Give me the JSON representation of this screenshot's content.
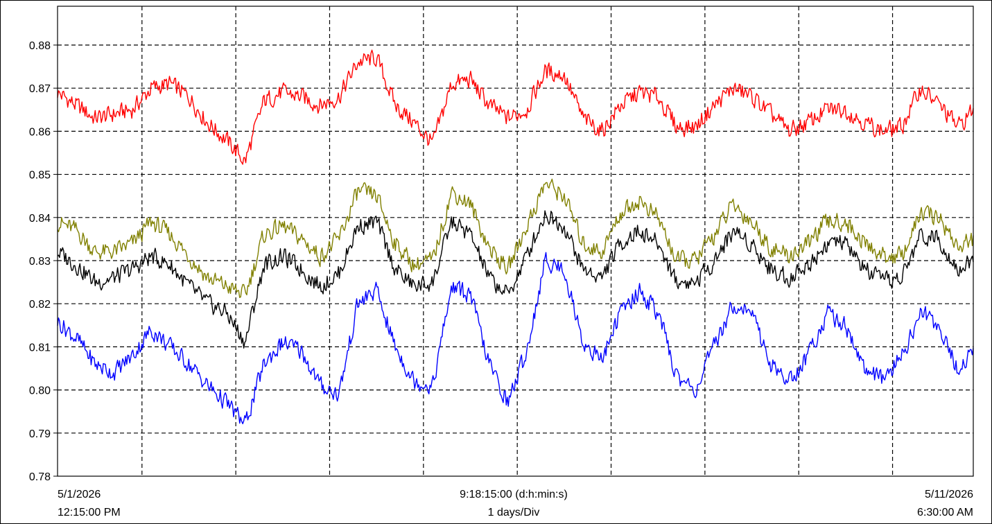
{
  "chart_data": {
    "type": "line",
    "title": "",
    "xlabel": "",
    "ylabel": "",
    "y_ticks": [
      "0.78",
      "0.79",
      "0.80",
      "0.81",
      "0.82",
      "0.83",
      "0.84",
      "0.85",
      "0.86",
      "0.87",
      "0.88"
    ],
    "ylim": [
      0.78,
      0.889
    ],
    "x_start": "5/1/2026 12:15:00 PM",
    "x_end": "5/11/2026 6:30:00 AM",
    "x_range_days": [
      0,
      9.7604
    ],
    "x_vertical_grid_days": [
      0,
      0.9,
      1.9,
      2.9,
      3.9,
      4.9,
      5.9,
      6.9,
      7.9,
      8.9,
      9.7604
    ],
    "grid": true,
    "legend": "none",
    "x_days": [
      0.0,
      0.2,
      0.4,
      0.6,
      0.8,
      1.0,
      1.2,
      1.4,
      1.6,
      1.8,
      2.0,
      2.2,
      2.4,
      2.6,
      2.8,
      3.0,
      3.2,
      3.4,
      3.6,
      3.8,
      4.0,
      4.2,
      4.4,
      4.6,
      4.8,
      5.0,
      5.2,
      5.4,
      5.6,
      5.8,
      6.0,
      6.2,
      6.4,
      6.6,
      6.8,
      7.0,
      7.2,
      7.4,
      7.6,
      7.8,
      8.0,
      8.2,
      8.4,
      8.6,
      8.8,
      9.0,
      9.2,
      9.4,
      9.6,
      9.76
    ],
    "series": [
      {
        "color": "#ff0000",
        "values": [
          0.869,
          0.866,
          0.863,
          0.864,
          0.865,
          0.87,
          0.871,
          0.868,
          0.862,
          0.858,
          0.853,
          0.867,
          0.869,
          0.868,
          0.866,
          0.868,
          0.876,
          0.877,
          0.866,
          0.862,
          0.857,
          0.871,
          0.872,
          0.866,
          0.863,
          0.865,
          0.874,
          0.873,
          0.863,
          0.86,
          0.866,
          0.869,
          0.868,
          0.861,
          0.861,
          0.866,
          0.87,
          0.868,
          0.864,
          0.86,
          0.862,
          0.865,
          0.865,
          0.862,
          0.86,
          0.861,
          0.87,
          0.866,
          0.861,
          0.865
        ]
      },
      {
        "color": "#808000",
        "values": [
          0.839,
          0.837,
          0.832,
          0.832,
          0.834,
          0.839,
          0.836,
          0.831,
          0.826,
          0.824,
          0.822,
          0.836,
          0.838,
          0.835,
          0.831,
          0.835,
          0.846,
          0.845,
          0.834,
          0.829,
          0.83,
          0.846,
          0.843,
          0.833,
          0.828,
          0.838,
          0.848,
          0.845,
          0.834,
          0.832,
          0.841,
          0.844,
          0.84,
          0.83,
          0.83,
          0.836,
          0.843,
          0.839,
          0.833,
          0.831,
          0.834,
          0.839,
          0.839,
          0.834,
          0.831,
          0.831,
          0.841,
          0.84,
          0.833,
          0.835
        ]
      },
      {
        "color": "#000000",
        "values": [
          0.832,
          0.829,
          0.825,
          0.826,
          0.828,
          0.831,
          0.829,
          0.824,
          0.82,
          0.818,
          0.811,
          0.829,
          0.831,
          0.828,
          0.824,
          0.827,
          0.838,
          0.839,
          0.828,
          0.824,
          0.825,
          0.839,
          0.836,
          0.826,
          0.822,
          0.831,
          0.841,
          0.838,
          0.828,
          0.826,
          0.834,
          0.837,
          0.834,
          0.825,
          0.825,
          0.83,
          0.837,
          0.834,
          0.828,
          0.826,
          0.829,
          0.834,
          0.834,
          0.828,
          0.825,
          0.826,
          0.836,
          0.835,
          0.828,
          0.83
        ]
      },
      {
        "color": "#0000ff",
        "values": [
          0.816,
          0.812,
          0.806,
          0.804,
          0.808,
          0.814,
          0.81,
          0.806,
          0.801,
          0.797,
          0.792,
          0.806,
          0.811,
          0.809,
          0.801,
          0.799,
          0.82,
          0.823,
          0.81,
          0.802,
          0.801,
          0.824,
          0.822,
          0.806,
          0.797,
          0.809,
          0.83,
          0.828,
          0.811,
          0.807,
          0.818,
          0.823,
          0.818,
          0.803,
          0.8,
          0.81,
          0.82,
          0.818,
          0.806,
          0.802,
          0.808,
          0.818,
          0.815,
          0.805,
          0.802,
          0.808,
          0.818,
          0.815,
          0.804,
          0.81
        ]
      }
    ]
  },
  "footer": {
    "left_date": "5/1/2026",
    "left_time": "12:15:00 PM",
    "center_span": "9:18:15:00 (d:h:min:s)",
    "center_div": "1 days/Div",
    "right_date": "5/11/2026",
    "right_time": "6:30:00 AM"
  }
}
